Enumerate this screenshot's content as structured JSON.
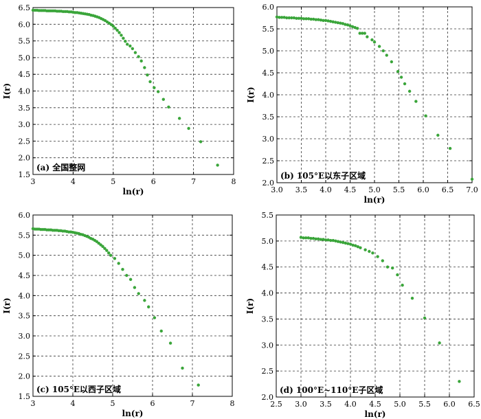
{
  "chart_data": [
    {
      "type": "scatter",
      "panel": "a",
      "annotation": "(a) 全国整网",
      "xlabel": "ln(r)",
      "ylabel": "I(r)",
      "xlim": [
        3,
        8
      ],
      "ylim": [
        1.5,
        6.5
      ],
      "xticks": [
        "3",
        "4",
        "5",
        "6",
        "7",
        "8"
      ],
      "yticks": [
        "1.5",
        "2.0",
        "2.5",
        "3.0",
        "3.5",
        "4.0",
        "4.5",
        "5.0",
        "5.5",
        "6.0",
        "6.5"
      ],
      "grid": true,
      "color": "#3aa53a",
      "points": [
        [
          3.0,
          6.42
        ],
        [
          3.05,
          6.42
        ],
        [
          3.1,
          6.42
        ],
        [
          3.15,
          6.41
        ],
        [
          3.2,
          6.41
        ],
        [
          3.25,
          6.41
        ],
        [
          3.3,
          6.41
        ],
        [
          3.35,
          6.4
        ],
        [
          3.4,
          6.4
        ],
        [
          3.45,
          6.4
        ],
        [
          3.5,
          6.4
        ],
        [
          3.55,
          6.4
        ],
        [
          3.6,
          6.39
        ],
        [
          3.65,
          6.39
        ],
        [
          3.7,
          6.39
        ],
        [
          3.75,
          6.38
        ],
        [
          3.8,
          6.38
        ],
        [
          3.85,
          6.38
        ],
        [
          3.9,
          6.37
        ],
        [
          3.95,
          6.37
        ],
        [
          4.0,
          6.36
        ],
        [
          4.05,
          6.35
        ],
        [
          4.1,
          6.35
        ],
        [
          4.15,
          6.34
        ],
        [
          4.2,
          6.33
        ],
        [
          4.25,
          6.32
        ],
        [
          4.3,
          6.31
        ],
        [
          4.35,
          6.3
        ],
        [
          4.4,
          6.29
        ],
        [
          4.45,
          6.27
        ],
        [
          4.5,
          6.26
        ],
        [
          4.55,
          6.24
        ],
        [
          4.6,
          6.22
        ],
        [
          4.65,
          6.2
        ],
        [
          4.7,
          6.17
        ],
        [
          4.75,
          6.14
        ],
        [
          4.8,
          6.11
        ],
        [
          4.85,
          6.07
        ],
        [
          4.9,
          6.03
        ],
        [
          4.95,
          5.99
        ],
        [
          5.0,
          5.94
        ],
        [
          5.05,
          5.88
        ],
        [
          5.1,
          5.82
        ],
        [
          5.15,
          5.75
        ],
        [
          5.2,
          5.67
        ],
        [
          5.25,
          5.58
        ],
        [
          5.3,
          5.49
        ],
        [
          5.35,
          5.4
        ],
        [
          5.42,
          5.35
        ],
        [
          5.48,
          5.27
        ],
        [
          5.55,
          5.15
        ],
        [
          5.63,
          5.03
        ],
        [
          5.7,
          4.9
        ],
        [
          5.78,
          4.7
        ],
        [
          5.85,
          4.48
        ],
        [
          5.92,
          4.28
        ],
        [
          6.02,
          4.1
        ],
        [
          6.12,
          3.98
        ],
        [
          6.25,
          3.75
        ],
        [
          6.38,
          3.52
        ],
        [
          6.65,
          3.18
        ],
        [
          6.88,
          2.88
        ],
        [
          7.18,
          2.48
        ],
        [
          7.6,
          1.78
        ]
      ]
    },
    {
      "type": "scatter",
      "panel": "b",
      "annotation": "(b) 105°E以东子区域",
      "xlabel": "ln(r)",
      "ylabel": "I(r)",
      "xlim": [
        3.0,
        7.0
      ],
      "ylim": [
        2.0,
        6.0
      ],
      "xticks": [
        "3.0",
        "3.5",
        "4.0",
        "4.5",
        "5.0",
        "5.5",
        "6.0",
        "6.5",
        "7.0"
      ],
      "yticks": [
        "2.0",
        "2.5",
        "3.0",
        "3.5",
        "4.0",
        "4.5",
        "5.0",
        "5.5",
        "6.0"
      ],
      "grid": true,
      "color": "#3aa53a",
      "points": [
        [
          3.0,
          5.77
        ],
        [
          3.05,
          5.76
        ],
        [
          3.1,
          5.76
        ],
        [
          3.15,
          5.76
        ],
        [
          3.2,
          5.75
        ],
        [
          3.25,
          5.75
        ],
        [
          3.3,
          5.75
        ],
        [
          3.35,
          5.75
        ],
        [
          3.4,
          5.74
        ],
        [
          3.45,
          5.74
        ],
        [
          3.5,
          5.74
        ],
        [
          3.55,
          5.73
        ],
        [
          3.6,
          5.73
        ],
        [
          3.65,
          5.73
        ],
        [
          3.7,
          5.72
        ],
        [
          3.75,
          5.72
        ],
        [
          3.8,
          5.71
        ],
        [
          3.85,
          5.71
        ],
        [
          3.9,
          5.7
        ],
        [
          3.95,
          5.69
        ],
        [
          4.0,
          5.69
        ],
        [
          4.05,
          5.68
        ],
        [
          4.1,
          5.67
        ],
        [
          4.15,
          5.66
        ],
        [
          4.2,
          5.65
        ],
        [
          4.25,
          5.64
        ],
        [
          4.3,
          5.63
        ],
        [
          4.35,
          5.62
        ],
        [
          4.4,
          5.6
        ],
        [
          4.45,
          5.59
        ],
        [
          4.5,
          5.57
        ],
        [
          4.55,
          5.55
        ],
        [
          4.6,
          5.53
        ],
        [
          4.65,
          5.51
        ],
        [
          4.7,
          5.4
        ],
        [
          4.75,
          5.4
        ],
        [
          4.8,
          5.4
        ],
        [
          4.85,
          5.32
        ],
        [
          4.95,
          5.25
        ],
        [
          5.0,
          5.2
        ],
        [
          5.1,
          5.1
        ],
        [
          5.18,
          5.0
        ],
        [
          5.25,
          4.9
        ],
        [
          5.35,
          4.75
        ],
        [
          5.48,
          4.53
        ],
        [
          5.55,
          4.4
        ],
        [
          5.62,
          4.25
        ],
        [
          5.72,
          4.08
        ],
        [
          5.85,
          3.85
        ],
        [
          6.05,
          3.52
        ],
        [
          6.3,
          3.08
        ],
        [
          6.55,
          2.78
        ],
        [
          7.0,
          2.08
        ]
      ]
    },
    {
      "type": "scatter",
      "panel": "c",
      "annotation": "(c) 105°E以西子区域",
      "xlabel": "ln(r)",
      "ylabel": "I(r)",
      "xlim": [
        3,
        8
      ],
      "ylim": [
        1.5,
        6.0
      ],
      "xticks": [
        "3",
        "4",
        "5",
        "6",
        "7",
        "8"
      ],
      "yticks": [
        "1.5",
        "2.0",
        "2.5",
        "3.0",
        "3.5",
        "4.0",
        "4.5",
        "5.0",
        "5.5",
        "6.0"
      ],
      "grid": true,
      "color": "#3aa53a",
      "points": [
        [
          3.0,
          5.66
        ],
        [
          3.05,
          5.65
        ],
        [
          3.1,
          5.65
        ],
        [
          3.15,
          5.65
        ],
        [
          3.2,
          5.64
        ],
        [
          3.25,
          5.64
        ],
        [
          3.3,
          5.64
        ],
        [
          3.35,
          5.63
        ],
        [
          3.4,
          5.63
        ],
        [
          3.45,
          5.63
        ],
        [
          3.5,
          5.62
        ],
        [
          3.55,
          5.62
        ],
        [
          3.6,
          5.62
        ],
        [
          3.65,
          5.61
        ],
        [
          3.7,
          5.61
        ],
        [
          3.75,
          5.6
        ],
        [
          3.8,
          5.6
        ],
        [
          3.85,
          5.59
        ],
        [
          3.9,
          5.58
        ],
        [
          3.95,
          5.58
        ],
        [
          4.0,
          5.57
        ],
        [
          4.05,
          5.56
        ],
        [
          4.1,
          5.55
        ],
        [
          4.15,
          5.54
        ],
        [
          4.2,
          5.52
        ],
        [
          4.25,
          5.51
        ],
        [
          4.3,
          5.49
        ],
        [
          4.35,
          5.47
        ],
        [
          4.4,
          5.45
        ],
        [
          4.45,
          5.42
        ],
        [
          4.5,
          5.4
        ],
        [
          4.55,
          5.37
        ],
        [
          4.6,
          5.34
        ],
        [
          4.65,
          5.3
        ],
        [
          4.7,
          5.26
        ],
        [
          4.75,
          5.22
        ],
        [
          4.8,
          5.17
        ],
        [
          4.85,
          5.12
        ],
        [
          4.9,
          5.06
        ],
        [
          4.95,
          5.0
        ],
        [
          5.05,
          4.92
        ],
        [
          5.15,
          4.8
        ],
        [
          5.25,
          4.65
        ],
        [
          5.35,
          4.5
        ],
        [
          5.45,
          4.4
        ],
        [
          5.55,
          4.2
        ],
        [
          5.65,
          4.05
        ],
        [
          5.8,
          3.88
        ],
        [
          5.9,
          3.72
        ],
        [
          6.05,
          3.45
        ],
        [
          6.22,
          3.12
        ],
        [
          6.45,
          2.82
        ],
        [
          6.75,
          2.2
        ],
        [
          7.15,
          1.78
        ]
      ]
    },
    {
      "type": "scatter",
      "panel": "d",
      "annotation": "(d) 100°E~110°E子区域",
      "xlabel": "ln(r)",
      "ylabel": "I(r)",
      "xlim": [
        2.5,
        6.5
      ],
      "ylim": [
        2.0,
        5.5
      ],
      "xticks": [
        "2.5",
        "3.0",
        "3.5",
        "4.0",
        "4.5",
        "5.0",
        "5.5",
        "6.0",
        "6.5"
      ],
      "yticks": [
        "2.0",
        "2.5",
        "3.0",
        "3.5",
        "4.0",
        "4.5",
        "5.0",
        "5.5"
      ],
      "grid": true,
      "color": "#3aa53a",
      "points": [
        [
          3.0,
          5.07
        ],
        [
          3.05,
          5.06
        ],
        [
          3.1,
          5.06
        ],
        [
          3.15,
          5.06
        ],
        [
          3.2,
          5.05
        ],
        [
          3.25,
          5.05
        ],
        [
          3.3,
          5.04
        ],
        [
          3.35,
          5.04
        ],
        [
          3.4,
          5.03
        ],
        [
          3.45,
          5.03
        ],
        [
          3.5,
          5.02
        ],
        [
          3.55,
          5.02
        ],
        [
          3.6,
          5.01
        ],
        [
          3.65,
          5.01
        ],
        [
          3.7,
          5.0
        ],
        [
          3.75,
          4.99
        ],
        [
          3.8,
          4.98
        ],
        [
          3.85,
          4.97
        ],
        [
          3.9,
          4.96
        ],
        [
          3.95,
          4.95
        ],
        [
          4.0,
          4.94
        ],
        [
          4.05,
          4.92
        ],
        [
          4.1,
          4.91
        ],
        [
          4.15,
          4.89
        ],
        [
          4.2,
          4.87
        ],
        [
          4.3,
          4.83
        ],
        [
          4.38,
          4.8
        ],
        [
          4.45,
          4.77
        ],
        [
          4.55,
          4.7
        ],
        [
          4.65,
          4.62
        ],
        [
          4.75,
          4.5
        ],
        [
          4.85,
          4.48
        ],
        [
          4.95,
          4.35
        ],
        [
          5.05,
          4.15
        ],
        [
          5.25,
          3.9
        ],
        [
          5.5,
          3.52
        ],
        [
          5.8,
          3.04
        ],
        [
          6.2,
          2.3
        ]
      ]
    }
  ]
}
